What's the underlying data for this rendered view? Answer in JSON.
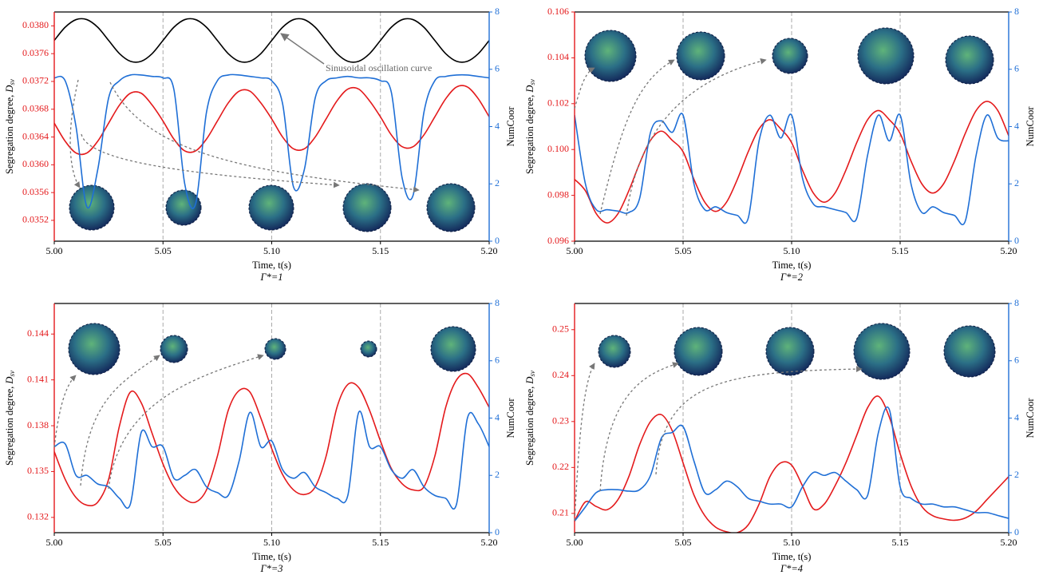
{
  "chart_data": [
    {
      "type": "line",
      "caption": "Γ*=1",
      "xlabel": "Time, t(s)",
      "ylabel": {
        "text": "Segregation degree, ",
        "symbol": "D",
        "subscript": "sv"
      },
      "y2label": "NumCoor",
      "annotation": "Sinusoidal oscillation curve",
      "x": [
        5,
        5.005,
        5.01,
        5.015,
        5.02,
        5.025,
        5.03,
        5.035,
        5.04,
        5.045,
        5.05,
        5.055,
        5.06,
        5.065,
        5.07,
        5.075,
        5.08,
        5.085,
        5.09,
        5.095,
        5.1,
        5.105,
        5.11,
        5.115,
        5.12,
        5.125,
        5.13,
        5.135,
        5.14,
        5.145,
        5.15,
        5.155,
        5.16,
        5.165,
        5.17,
        5.175,
        5.18,
        5.185,
        5.19,
        5.195,
        5.2
      ],
      "xlim": [
        5,
        5.2
      ],
      "xticks": [
        {
          "value": 5,
          "label": "5.00"
        },
        5.05,
        {
          "value": 5.1,
          "label": "5.10"
        },
        5.15,
        {
          "value": 5.2,
          "label": "5.20"
        }
      ],
      "ylim": [
        0.0349,
        0.0382
      ],
      "yticks": [
        {
          "value": 0.0352,
          "label": "0.0352"
        },
        {
          "value": 0.0356,
          "label": "0.0356"
        },
        {
          "value": 0.036,
          "label": "0.0360"
        },
        {
          "value": 0.0364,
          "label": "0.0364"
        },
        {
          "value": 0.0368,
          "label": "0.0368"
        },
        {
          "value": 0.0372,
          "label": "0.0372"
        },
        {
          "value": 0.0376,
          "label": "0.0376"
        },
        {
          "value": 0.038,
          "label": "0.0380"
        }
      ],
      "y2lim": [
        0,
        8
      ],
      "y2ticks": [
        0,
        2,
        4,
        6,
        8
      ],
      "grid": "x",
      "series": [
        {
          "color": "#e41a1c",
          "values": [
            0.0366,
            0.03634,
            0.03617,
            0.03617,
            0.03634,
            0.0366,
            0.03686,
            0.03703,
            0.03703,
            0.03686,
            0.03663,
            0.03637,
            0.0362,
            0.0362,
            0.03637,
            0.03663,
            0.03689,
            0.03706,
            0.03706,
            0.03689,
            0.03666,
            0.0364,
            0.03623,
            0.03623,
            0.0364,
            0.03666,
            0.03692,
            0.03709,
            0.03709,
            0.03692,
            0.03669,
            0.03643,
            0.03626,
            0.03626,
            0.03643,
            0.03669,
            0.03695,
            0.03712,
            0.03712,
            0.03695,
            0.03669
          ]
        },
        {
          "color": "#1f6fd6",
          "axis": "y2",
          "values": [
            5.7,
            5.6,
            4.0,
            1.2,
            2.5,
            5.0,
            5.6,
            5.8,
            5.8,
            5.75,
            5.7,
            5.3,
            2.0,
            1.3,
            4.5,
            5.6,
            5.8,
            5.8,
            5.75,
            5.7,
            5.6,
            4.8,
            1.9,
            2.5,
            5.0,
            5.6,
            5.7,
            5.75,
            5.7,
            5.7,
            5.6,
            5.2,
            2.2,
            1.6,
            4.5,
            5.6,
            5.75,
            5.8,
            5.8,
            5.75,
            5.7
          ]
        },
        {
          "color": "#000000",
          "values": [
            0.03779,
            0.03798,
            0.03809,
            0.03809,
            0.03798,
            0.03779,
            0.0376,
            0.03749,
            0.03749,
            0.0376,
            0.03779,
            0.03798,
            0.03809,
            0.03809,
            0.03798,
            0.03779,
            0.0376,
            0.03749,
            0.03749,
            0.0376,
            0.03779,
            0.03798,
            0.03809,
            0.03809,
            0.03798,
            0.03779,
            0.0376,
            0.03749,
            0.03749,
            0.0376,
            0.03779,
            0.03798,
            0.03809,
            0.03809,
            0.03798,
            0.03779,
            0.0376,
            0.03749,
            0.03749,
            0.0376,
            0.03779
          ]
        }
      ]
    },
    {
      "type": "line",
      "caption": "Γ*=2",
      "xlabel": "Time, t(s)",
      "ylabel": {
        "text": "Segregation degree, ",
        "symbol": "D",
        "subscript": "sv"
      },
      "y2label": "NumCoor",
      "x": [
        5,
        5.005,
        5.01,
        5.015,
        5.02,
        5.025,
        5.03,
        5.035,
        5.04,
        5.045,
        5.05,
        5.055,
        5.06,
        5.065,
        5.07,
        5.075,
        5.08,
        5.085,
        5.09,
        5.095,
        5.1,
        5.105,
        5.11,
        5.115,
        5.12,
        5.125,
        5.13,
        5.135,
        5.14,
        5.145,
        5.15,
        5.155,
        5.16,
        5.165,
        5.17,
        5.175,
        5.18,
        5.185,
        5.19,
        5.195,
        5.2
      ],
      "xlim": [
        5,
        5.2
      ],
      "xticks": [
        {
          "value": 5,
          "label": "5.00"
        },
        5.05,
        {
          "value": 5.1,
          "label": "5.10"
        },
        5.15,
        {
          "value": 5.2,
          "label": "5.20"
        }
      ],
      "ylim": [
        0.096,
        0.106
      ],
      "yticks": [
        0.096,
        0.098,
        {
          "value": 0.1,
          "label": "0.100"
        },
        0.102,
        0.104,
        0.106
      ],
      "y2lim": [
        0,
        8
      ],
      "y2ticks": [
        0,
        2,
        4,
        6,
        8
      ],
      "grid": "x",
      "series": [
        {
          "color": "#e41a1c",
          "values": [
            0.0987,
            0.0982,
            0.0972,
            0.0968,
            0.0972,
            0.0982,
            0.0994,
            0.1004,
            0.1008,
            0.1004,
            0.0999,
            0.0987,
            0.0977,
            0.0973,
            0.0977,
            0.0987,
            0.0999,
            0.1009,
            0.1013,
            0.1009,
            0.1003,
            0.0991,
            0.0981,
            0.0977,
            0.0981,
            0.0991,
            0.1003,
            0.1013,
            0.1017,
            0.1013,
            0.1007,
            0.0995,
            0.0985,
            0.0981,
            0.0985,
            0.0995,
            0.1007,
            0.1017,
            0.1021,
            0.1017,
            0.1006
          ]
        },
        {
          "color": "#1f6fd6",
          "axis": "y2",
          "values": [
            4.4,
            2.0,
            1.1,
            1.1,
            1.05,
            1.0,
            1.5,
            3.8,
            4.2,
            3.8,
            4.4,
            2.0,
            1.1,
            1.2,
            1.0,
            0.9,
            0.8,
            3.5,
            4.4,
            3.6,
            4.4,
            2.2,
            1.3,
            1.2,
            1.1,
            1.0,
            0.8,
            3.0,
            4.4,
            3.5,
            4.4,
            2.0,
            1.0,
            1.2,
            1.0,
            0.9,
            0.7,
            3.0,
            4.4,
            3.6,
            3.5
          ]
        }
      ]
    },
    {
      "type": "line",
      "caption": "Γ*=3",
      "xlabel": "Time, t(s)",
      "ylabel": {
        "text": "Segregation degree, ",
        "symbol": "D",
        "subscript": "sv"
      },
      "y2label": "NumCoor",
      "x": [
        5,
        5.005,
        5.01,
        5.015,
        5.02,
        5.025,
        5.03,
        5.035,
        5.04,
        5.045,
        5.05,
        5.055,
        5.06,
        5.065,
        5.07,
        5.075,
        5.08,
        5.085,
        5.09,
        5.095,
        5.1,
        5.105,
        5.11,
        5.115,
        5.12,
        5.125,
        5.13,
        5.135,
        5.14,
        5.145,
        5.15,
        5.155,
        5.16,
        5.165,
        5.17,
        5.175,
        5.18,
        5.185,
        5.19,
        5.195,
        5.2
      ],
      "xlim": [
        5,
        5.2
      ],
      "xticks": [
        {
          "value": 5,
          "label": "5.00"
        },
        5.05,
        {
          "value": 5.1,
          "label": "5.10"
        },
        5.15,
        {
          "value": 5.2,
          "label": "5.20"
        }
      ],
      "ylim": [
        0.131,
        0.146
      ],
      "yticks": [
        0.132,
        0.135,
        0.138,
        0.141,
        0.144
      ],
      "y2lim": [
        0,
        8
      ],
      "y2ticks": [
        0,
        2,
        4,
        6,
        8
      ],
      "grid": "x",
      "series": [
        {
          "color": "#e41a1c",
          "values": [
            0.1363,
            0.1345,
            0.1333,
            0.1328,
            0.133,
            0.1345,
            0.138,
            0.1402,
            0.1395,
            0.1375,
            0.1355,
            0.134,
            0.1332,
            0.133,
            0.1338,
            0.136,
            0.139,
            0.1403,
            0.1402,
            0.1385,
            0.1365,
            0.1348,
            0.1338,
            0.1335,
            0.134,
            0.136,
            0.1392,
            0.1407,
            0.1405,
            0.139,
            0.137,
            0.1352,
            0.1342,
            0.1338,
            0.134,
            0.136,
            0.1392,
            0.141,
            0.1414,
            0.1405,
            0.1392
          ]
        },
        {
          "color": "#1f6fd6",
          "axis": "y2",
          "values": [
            3.0,
            3.1,
            2.0,
            2.0,
            1.7,
            1.6,
            1.2,
            1.0,
            3.5,
            3.0,
            3.0,
            1.9,
            2.0,
            2.2,
            1.6,
            1.4,
            1.3,
            2.5,
            4.2,
            3.0,
            3.2,
            2.2,
            1.9,
            2.1,
            1.6,
            1.4,
            1.2,
            1.3,
            4.2,
            3.0,
            3.0,
            2.2,
            1.9,
            2.2,
            1.6,
            1.3,
            1.2,
            1.0,
            4.0,
            3.8,
            3.0
          ]
        }
      ]
    },
    {
      "type": "line",
      "caption": "Γ*=4",
      "xlabel": "Time, t(s)",
      "ylabel": {
        "text": "Segregation degree, ",
        "symbol": "D",
        "subscript": "sv"
      },
      "y2label": "NumCoor",
      "x": [
        5,
        5.005,
        5.01,
        5.015,
        5.02,
        5.025,
        5.03,
        5.035,
        5.04,
        5.045,
        5.05,
        5.055,
        5.06,
        5.065,
        5.07,
        5.075,
        5.08,
        5.085,
        5.09,
        5.095,
        5.1,
        5.105,
        5.11,
        5.115,
        5.12,
        5.125,
        5.13,
        5.135,
        5.14,
        5.145,
        5.15,
        5.155,
        5.16,
        5.165,
        5.17,
        5.175,
        5.18,
        5.185,
        5.19,
        5.195,
        5.2
      ],
      "xlim": [
        5,
        5.2
      ],
      "xticks": [
        {
          "value": 5,
          "label": "5.00"
        },
        5.05,
        {
          "value": 5.1,
          "label": "5.10"
        },
        5.15,
        {
          "value": 5.2,
          "label": "5.20"
        }
      ],
      "ylim": [
        0.2058,
        0.2557
      ],
      "yticks": [
        0.21,
        0.22,
        0.23,
        0.24,
        0.25
      ],
      "y2lim": [
        0,
        8
      ],
      "y2ticks": [
        0,
        2,
        4,
        6,
        8
      ],
      "grid": "x",
      "series": [
        {
          "color": "#e41a1c",
          "values": [
            0.2083,
            0.2125,
            0.2115,
            0.2108,
            0.213,
            0.218,
            0.225,
            0.23,
            0.2315,
            0.228,
            0.221,
            0.214,
            0.2095,
            0.207,
            0.206,
            0.2058,
            0.2075,
            0.212,
            0.218,
            0.221,
            0.2205,
            0.216,
            0.211,
            0.212,
            0.216,
            0.221,
            0.227,
            0.233,
            0.2355,
            0.231,
            0.223,
            0.216,
            0.2115,
            0.2095,
            0.2088,
            0.2085,
            0.209,
            0.2105,
            0.213,
            0.2155,
            0.218
          ]
        },
        {
          "color": "#1f6fd6",
          "axis": "y2",
          "values": [
            0.4,
            0.9,
            1.4,
            1.5,
            1.5,
            1.45,
            1.5,
            2.0,
            3.3,
            3.5,
            3.7,
            2.5,
            1.4,
            1.5,
            1.8,
            1.6,
            1.2,
            1.1,
            1.0,
            1.0,
            0.9,
            1.6,
            2.1,
            2.0,
            2.1,
            1.8,
            1.5,
            1.3,
            3.5,
            4.3,
            1.6,
            1.2,
            1.0,
            1.0,
            0.9,
            0.9,
            0.8,
            0.7,
            0.7,
            0.6,
            0.5
          ]
        }
      ]
    }
  ]
}
